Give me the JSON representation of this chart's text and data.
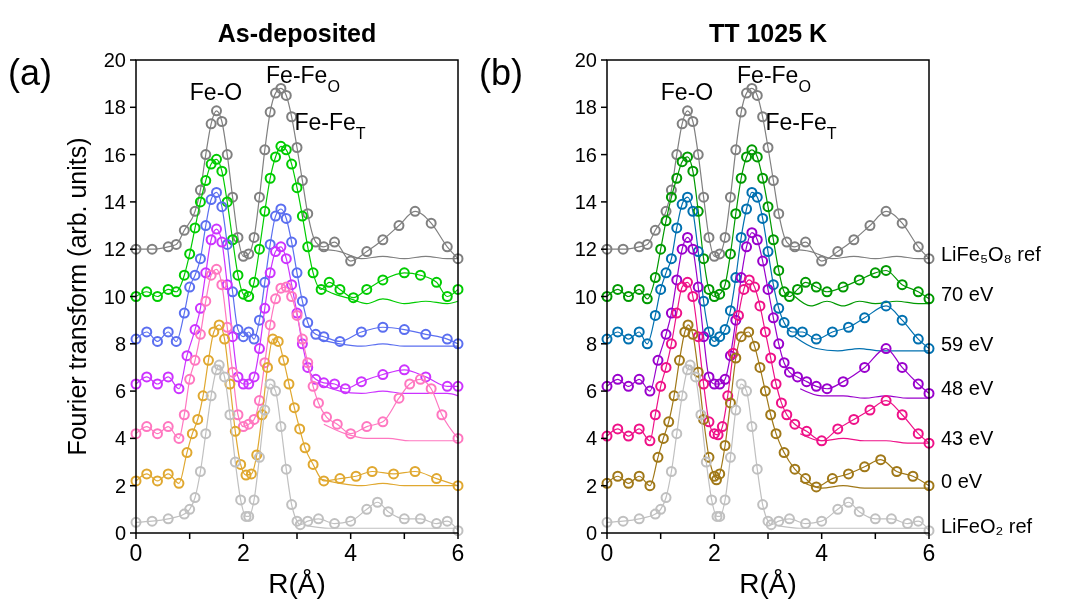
{
  "chart_data": [
    {
      "type": "line",
      "title": "As-deposited",
      "xlabel": "R(Å)",
      "ylabel": "Fourier transform (arb. units)",
      "xlim": [
        0,
        6
      ],
      "xticks": [
        0,
        {
          "value": 1,
          "label": null
        },
        2,
        {
          "value": 3,
          "label": null
        },
        4,
        {
          "value": 5,
          "label": null
        },
        6
      ],
      "ylim": [
        0,
        20
      ],
      "yticks": [
        0,
        2,
        4,
        6,
        8,
        10,
        12,
        14,
        16,
        18,
        20
      ],
      "grid": false,
      "annotations": [
        "(a)",
        "Fe-O",
        "Fe-Fe$_{O}$",
        "Fe-Fe$_{T}$"
      ],
      "series": [
        {
          "color": "#808080",
          "marker": "circle",
          "x": [
            0,
            0.3,
            0.6,
            0.75,
            0.9,
            1.1,
            1.2,
            1.3,
            1.4,
            1.5,
            1.6,
            1.7,
            1.8,
            1.9,
            2.0,
            2.1,
            2.2,
            2.3,
            2.4,
            2.5,
            2.6,
            2.7,
            2.8,
            2.9,
            3.0,
            3.1,
            3.2,
            3.35,
            3.5,
            3.7,
            4.0,
            4.3,
            4.6,
            4.9,
            5.2,
            5.5,
            5.8,
            6.0
          ],
          "values": [
            12.0,
            12.0,
            12.1,
            12.2,
            12.8,
            13.6,
            14.5,
            16.0,
            17.3,
            17.85,
            17.4,
            16.0,
            14.2,
            12.5,
            11.7,
            11.8,
            12.5,
            14.2,
            16.2,
            17.8,
            18.6,
            18.8,
            18.5,
            17.6,
            16.3,
            14.9,
            13.5,
            12.3,
            12.1,
            12.3,
            11.5,
            11.9,
            12.4,
            13.0,
            13.6,
            13.1,
            12.1,
            11.6
          ]
        },
        {
          "type": "line",
          "color": "#808080",
          "marker": "none",
          "x": [
            3.4,
            3.8,
            4.2,
            4.6,
            5.0,
            5.4,
            5.8,
            6.0
          ],
          "values": [
            12.0,
            11.9,
            11.6,
            11.7,
            11.6,
            11.7,
            11.6,
            11.6
          ]
        },
        {
          "color": "#00cc00",
          "marker": "circle",
          "x": [
            0,
            0.2,
            0.4,
            0.6,
            0.75,
            0.9,
            1.0,
            1.1,
            1.2,
            1.3,
            1.4,
            1.5,
            1.6,
            1.7,
            1.8,
            1.9,
            2.0,
            2.1,
            2.2,
            2.3,
            2.4,
            2.5,
            2.6,
            2.7,
            2.8,
            2.9,
            3.0,
            3.1,
            3.2,
            3.3,
            3.45,
            3.6,
            3.8,
            4.05,
            4.3,
            4.6,
            5.0,
            5.3,
            5.6,
            5.8,
            6.0
          ],
          "values": [
            10.0,
            10.2,
            10.0,
            10.3,
            10.2,
            10.9,
            11.8,
            12.9,
            14.0,
            14.9,
            15.6,
            15.8,
            15.3,
            14.0,
            12.4,
            10.9,
            10.1,
            10.0,
            10.6,
            12.0,
            13.6,
            15.0,
            15.9,
            16.35,
            16.2,
            15.6,
            14.6,
            13.4,
            12.1,
            11.0,
            10.3,
            10.6,
            10.3,
            9.95,
            10.3,
            10.7,
            11.0,
            10.9,
            10.6,
            10.0,
            10.3
          ]
        },
        {
          "type": "line",
          "color": "#00cc00",
          "marker": "none",
          "x": [
            3.4,
            3.7,
            4.0,
            4.3,
            4.6,
            5.0,
            5.4,
            5.8,
            6.0
          ],
          "values": [
            10.4,
            10.1,
            9.9,
            9.7,
            9.9,
            9.7,
            9.8,
            9.7,
            9.8
          ]
        },
        {
          "color": "#5b6ff0",
          "marker": "circle",
          "x": [
            0,
            0.2,
            0.4,
            0.6,
            0.75,
            0.9,
            1.0,
            1.1,
            1.2,
            1.3,
            1.4,
            1.5,
            1.6,
            1.7,
            1.8,
            1.9,
            2.0,
            2.1,
            2.2,
            2.3,
            2.4,
            2.5,
            2.6,
            2.7,
            2.8,
            2.9,
            3.0,
            3.1,
            3.2,
            3.35,
            3.5,
            3.8,
            4.2,
            4.6,
            5.0,
            5.4,
            5.8,
            6.0
          ],
          "values": [
            8.2,
            8.5,
            8.1,
            8.5,
            8.1,
            9.3,
            10.4,
            10.9,
            11.6,
            13.0,
            14.1,
            14.4,
            13.8,
            12.2,
            10.2,
            8.6,
            8.3,
            8.5,
            8.2,
            9.0,
            10.6,
            12.2,
            13.4,
            13.7,
            13.3,
            12.3,
            11.0,
            9.8,
            8.9,
            8.4,
            8.3,
            8.1,
            8.5,
            8.7,
            8.6,
            8.4,
            8.2,
            8.0
          ]
        },
        {
          "type": "line",
          "color": "#5b6ff0",
          "marker": "none",
          "x": [
            3.4,
            3.8,
            4.2,
            4.6,
            5.0,
            5.4,
            5.8,
            6.0
          ],
          "values": [
            8.2,
            8.0,
            7.9,
            8.0,
            7.9,
            7.9,
            7.9,
            7.9
          ]
        },
        {
          "color": "#cc33ff",
          "marker": "circle",
          "x": [
            0,
            0.2,
            0.4,
            0.6,
            0.8,
            0.95,
            1.1,
            1.2,
            1.3,
            1.4,
            1.5,
            1.6,
            1.7,
            1.8,
            1.9,
            2.0,
            2.1,
            2.2,
            2.3,
            2.4,
            2.5,
            2.6,
            2.7,
            2.8,
            2.9,
            3.0,
            3.1,
            3.2,
            3.35,
            3.5,
            3.7,
            3.9,
            4.2,
            4.6,
            5.0,
            5.4,
            5.8,
            6.0
          ],
          "values": [
            6.3,
            6.6,
            6.3,
            6.6,
            6.1,
            7.5,
            8.6,
            9.5,
            11.0,
            12.4,
            12.85,
            12.3,
            10.5,
            8.3,
            6.6,
            6.3,
            6.3,
            6.6,
            7.8,
            9.5,
            11.0,
            11.9,
            12.1,
            11.6,
            10.5,
            9.3,
            8.0,
            7.0,
            6.5,
            6.35,
            6.3,
            6.1,
            6.4,
            6.7,
            6.9,
            6.6,
            6.2,
            6.2
          ]
        },
        {
          "type": "line",
          "color": "#cc33ff",
          "marker": "none",
          "x": [
            3.4,
            3.8,
            4.2,
            4.6,
            5.0,
            5.4,
            5.8,
            6.0
          ],
          "values": [
            6.3,
            6.0,
            5.9,
            6.0,
            5.9,
            5.9,
            5.9,
            5.8
          ]
        },
        {
          "color": "#ff77c0",
          "marker": "circle",
          "x": [
            0,
            0.2,
            0.4,
            0.6,
            0.8,
            0.9,
            1.0,
            1.1,
            1.2,
            1.3,
            1.4,
            1.5,
            1.6,
            1.7,
            1.8,
            1.9,
            2.0,
            2.1,
            2.2,
            2.3,
            2.4,
            2.5,
            2.6,
            2.7,
            2.8,
            2.9,
            3.0,
            3.1,
            3.2,
            3.3,
            3.4,
            3.55,
            3.75,
            4.0,
            4.3,
            4.6,
            4.9,
            5.1,
            5.3,
            5.5,
            5.7,
            6.0
          ],
          "values": [
            4.2,
            4.5,
            4.2,
            4.5,
            4.0,
            5.0,
            6.5,
            7.3,
            8.4,
            9.8,
            10.9,
            11.15,
            10.5,
            8.7,
            6.8,
            5.0,
            4.5,
            4.6,
            4.8,
            5.6,
            7.2,
            8.8,
            9.9,
            10.35,
            10.4,
            10.0,
            9.2,
            8.2,
            7.2,
            6.2,
            5.5,
            4.9,
            4.6,
            4.2,
            4.5,
            4.7,
            5.7,
            6.3,
            6.5,
            6.1,
            5.0,
            4.0
          ]
        },
        {
          "type": "line",
          "color": "#ff77c0",
          "marker": "none",
          "x": [
            3.5,
            3.9,
            4.3,
            4.7,
            5.1,
            5.5,
            5.9,
            6.0
          ],
          "values": [
            4.6,
            4.2,
            4.0,
            4.0,
            3.9,
            3.9,
            3.9,
            3.9
          ]
        },
        {
          "color": "#e0a830",
          "marker": "circle",
          "x": [
            0,
            0.2,
            0.4,
            0.6,
            0.8,
            0.95,
            1.05,
            1.15,
            1.25,
            1.35,
            1.45,
            1.55,
            1.65,
            1.75,
            1.85,
            1.95,
            2.05,
            2.15,
            2.25,
            2.35,
            2.45,
            2.55,
            2.65,
            2.75,
            2.85,
            2.95,
            3.05,
            3.15,
            3.3,
            3.5,
            3.8,
            4.1,
            4.4,
            4.8,
            5.2,
            5.6,
            6.0
          ],
          "values": [
            2.2,
            2.5,
            2.2,
            2.5,
            2.1,
            3.4,
            4.2,
            4.8,
            5.8,
            7.3,
            8.5,
            8.8,
            8.2,
            6.3,
            4.3,
            2.9,
            2.45,
            2.5,
            3.3,
            5.0,
            7.0,
            8.2,
            8.1,
            7.3,
            6.3,
            5.3,
            4.4,
            3.6,
            2.9,
            2.2,
            2.3,
            2.4,
            2.6,
            2.5,
            2.6,
            2.3,
            2.0
          ]
        },
        {
          "type": "line",
          "color": "#e0a830",
          "marker": "none",
          "x": [
            3.4,
            3.8,
            4.2,
            4.6,
            5.0,
            5.4,
            5.8,
            6.0
          ],
          "values": [
            2.3,
            2.1,
            2.0,
            2.1,
            2.0,
            2.0,
            2.0,
            2.0
          ]
        },
        {
          "color": "#c0c0c0",
          "marker": "circle",
          "x": [
            0,
            0.3,
            0.6,
            0.9,
            1.0,
            1.1,
            1.2,
            1.3,
            1.4,
            1.5,
            1.55,
            1.65,
            1.75,
            1.85,
            1.95,
            2.05,
            2.1,
            2.2,
            2.3,
            2.4,
            2.5,
            2.6,
            2.7,
            2.8,
            2.9,
            3.0,
            3.06,
            3.2,
            3.4,
            3.7,
            4.0,
            4.3,
            4.5,
            4.7,
            5.0,
            5.3,
            5.6,
            5.8,
            6.0
          ],
          "values": [
            0.45,
            0.5,
            0.6,
            0.8,
            1.0,
            1.5,
            2.6,
            4.2,
            5.8,
            6.9,
            7.1,
            6.6,
            5.0,
            3.0,
            1.4,
            0.7,
            0.7,
            1.4,
            3.2,
            5.2,
            6.3,
            6.0,
            4.5,
            2.7,
            1.2,
            0.5,
            0.35,
            0.5,
            0.6,
            0.4,
            0.5,
            1.0,
            1.3,
            0.9,
            0.6,
            0.6,
            0.4,
            0.5,
            0.1
          ]
        },
        {
          "type": "line",
          "color": "#c0c0c0",
          "marker": "none",
          "x": [
            3.2,
            3.6,
            4.0,
            4.4,
            4.8,
            5.2,
            5.6,
            6.0
          ],
          "values": [
            0.3,
            0.2,
            0.2,
            0.2,
            0.2,
            0.2,
            0.2,
            0.2
          ]
        }
      ]
    },
    {
      "type": "line",
      "title": "TT 1025 K",
      "xlabel": "R(Å)",
      "xlim": [
        0,
        6
      ],
      "xticks": [
        0,
        {
          "value": 1,
          "label": null
        },
        2,
        {
          "value": 3,
          "label": null
        },
        4,
        {
          "value": 5,
          "label": null
        },
        6
      ],
      "ylim": [
        0,
        20
      ],
      "yticks": [
        0,
        2,
        4,
        6,
        8,
        10,
        12,
        14,
        16,
        18,
        20
      ],
      "grid": false,
      "annotations": [
        "(b)",
        "Fe-O",
        "Fe-Fe$_{O}$",
        "Fe-Fe$_{T}$"
      ],
      "series": [
        {
          "name": "LiFe₅O₈ ref",
          "color": "#808080",
          "marker": "circle",
          "x": [
            0,
            0.3,
            0.6,
            0.75,
            0.9,
            1.1,
            1.2,
            1.3,
            1.4,
            1.5,
            1.6,
            1.7,
            1.8,
            1.9,
            2.0,
            2.1,
            2.2,
            2.3,
            2.4,
            2.5,
            2.6,
            2.7,
            2.8,
            2.9,
            3.0,
            3.1,
            3.2,
            3.35,
            3.5,
            3.7,
            4.0,
            4.3,
            4.6,
            4.9,
            5.2,
            5.5,
            5.8,
            6.0
          ],
          "values": [
            12.0,
            12.0,
            12.1,
            12.2,
            12.8,
            13.6,
            14.5,
            16.0,
            17.3,
            17.85,
            17.4,
            16.0,
            14.2,
            12.5,
            11.7,
            11.8,
            12.5,
            14.2,
            16.2,
            17.8,
            18.6,
            18.8,
            18.5,
            17.6,
            16.3,
            14.9,
            13.5,
            12.3,
            12.1,
            12.3,
            11.5,
            11.9,
            12.4,
            13.0,
            13.6,
            13.1,
            12.1,
            11.6
          ]
        },
        {
          "type": "line",
          "color": "#808080",
          "marker": "none",
          "x": [
            3.4,
            3.8,
            4.2,
            4.6,
            5.0,
            5.4,
            5.8,
            6.0
          ],
          "values": [
            12.0,
            11.9,
            11.6,
            11.7,
            11.6,
            11.7,
            11.6,
            11.6
          ]
        },
        {
          "name": "70 eV",
          "color": "#009900",
          "marker": "circle",
          "x": [
            0,
            0.2,
            0.4,
            0.6,
            0.75,
            0.9,
            1.0,
            1.1,
            1.2,
            1.3,
            1.4,
            1.5,
            1.6,
            1.7,
            1.8,
            1.9,
            2.0,
            2.1,
            2.2,
            2.3,
            2.4,
            2.5,
            2.6,
            2.7,
            2.8,
            2.9,
            3.0,
            3.1,
            3.2,
            3.3,
            3.4,
            3.55,
            3.7,
            3.9,
            4.1,
            4.4,
            4.7,
            5.0,
            5.2,
            5.5,
            5.8,
            6.0
          ],
          "values": [
            10.0,
            10.3,
            10.0,
            10.3,
            9.9,
            10.8,
            12.0,
            13.2,
            14.2,
            15.0,
            15.7,
            15.9,
            15.3,
            13.6,
            11.6,
            10.3,
            10.0,
            10.1,
            10.5,
            11.8,
            13.5,
            15.0,
            15.9,
            16.2,
            15.9,
            15.0,
            13.8,
            12.4,
            11.1,
            10.2,
            10.0,
            10.3,
            10.6,
            10.4,
            10.2,
            10.4,
            10.7,
            11.0,
            11.1,
            10.5,
            10.2,
            9.9
          ]
        },
        {
          "type": "line",
          "color": "#009900",
          "marker": "none",
          "x": [
            3.5,
            3.8,
            4.1,
            4.4,
            4.7,
            5.0,
            5.4,
            5.8,
            6.0
          ],
          "values": [
            10.0,
            9.6,
            9.8,
            9.6,
            9.8,
            9.7,
            9.8,
            9.7,
            9.7
          ]
        },
        {
          "name": "59 eV",
          "color": "#0070b0",
          "marker": "circle",
          "x": [
            0,
            0.2,
            0.4,
            0.6,
            0.75,
            0.9,
            1.0,
            1.1,
            1.2,
            1.3,
            1.4,
            1.5,
            1.6,
            1.7,
            1.8,
            1.9,
            2.0,
            2.1,
            2.2,
            2.3,
            2.4,
            2.5,
            2.6,
            2.7,
            2.8,
            2.9,
            3.0,
            3.1,
            3.2,
            3.3,
            3.45,
            3.64,
            3.9,
            4.2,
            4.5,
            4.8,
            5.2,
            5.5,
            5.8,
            6.0
          ],
          "values": [
            8.2,
            8.5,
            8.2,
            8.5,
            8.0,
            9.2,
            10.3,
            11.0,
            11.6,
            12.9,
            13.9,
            14.2,
            13.6,
            11.9,
            9.8,
            8.5,
            8.1,
            8.3,
            8.6,
            9.4,
            10.8,
            12.5,
            13.7,
            14.4,
            14.2,
            13.3,
            11.9,
            10.5,
            9.5,
            8.9,
            8.5,
            8.5,
            8.2,
            8.5,
            8.7,
            9.1,
            9.6,
            9.0,
            8.2,
            7.8
          ]
        },
        {
          "type": "line",
          "color": "#0070b0",
          "marker": "none",
          "x": [
            3.5,
            3.9,
            4.3,
            4.7,
            5.1,
            5.5,
            5.9,
            6.0
          ],
          "values": [
            8.3,
            7.8,
            7.7,
            7.8,
            7.7,
            7.7,
            7.7,
            7.7
          ]
        },
        {
          "name": "48 eV",
          "color": "#9900cc",
          "marker": "circle",
          "x": [
            0,
            0.2,
            0.4,
            0.6,
            0.8,
            0.95,
            1.1,
            1.2,
            1.3,
            1.4,
            1.5,
            1.6,
            1.7,
            1.8,
            1.9,
            2.0,
            2.1,
            2.2,
            2.3,
            2.4,
            2.5,
            2.6,
            2.7,
            2.8,
            2.9,
            3.0,
            3.1,
            3.2,
            3.3,
            3.4,
            3.55,
            3.72,
            3.9,
            4.1,
            4.4,
            4.8,
            5.2,
            5.5,
            5.8,
            6.0
          ],
          "values": [
            6.2,
            6.5,
            6.2,
            6.5,
            6.0,
            7.3,
            8.4,
            9.3,
            10.7,
            12.0,
            12.5,
            12.0,
            10.4,
            8.3,
            6.6,
            6.3,
            6.3,
            6.5,
            7.5,
            9.0,
            10.8,
            12.1,
            12.7,
            12.4,
            11.5,
            10.3,
            9.1,
            8.0,
            7.2,
            6.8,
            6.6,
            6.4,
            6.2,
            6.1,
            6.4,
            7.0,
            7.8,
            7.0,
            6.3,
            5.9
          ]
        },
        {
          "type": "line",
          "color": "#9900cc",
          "marker": "none",
          "x": [
            3.6,
            4.0,
            4.4,
            4.8,
            5.2,
            5.6,
            6.0
          ],
          "values": [
            6.1,
            5.8,
            5.8,
            5.7,
            5.8,
            5.7,
            5.7
          ]
        },
        {
          "name": "43 eV",
          "color": "#ee1188",
          "marker": "circle",
          "x": [
            0,
            0.2,
            0.4,
            0.6,
            0.8,
            0.9,
            1.0,
            1.1,
            1.2,
            1.3,
            1.4,
            1.5,
            1.6,
            1.7,
            1.8,
            1.9,
            2.0,
            2.07,
            2.15,
            2.25,
            2.35,
            2.45,
            2.55,
            2.65,
            2.75,
            2.85,
            2.95,
            3.05,
            3.15,
            3.25,
            3.35,
            3.5,
            3.72,
            4.0,
            4.3,
            4.6,
            4.9,
            5.2,
            5.5,
            5.8,
            6.0
          ],
          "values": [
            4.1,
            4.4,
            4.1,
            4.4,
            3.9,
            5.0,
            6.2,
            7.0,
            8.0,
            9.3,
            10.4,
            10.6,
            10.0,
            8.3,
            6.3,
            4.7,
            4.2,
            4.15,
            4.5,
            5.8,
            7.6,
            9.2,
            10.3,
            10.7,
            10.4,
            9.6,
            8.5,
            7.4,
            6.3,
            5.5,
            5.0,
            4.6,
            4.3,
            3.9,
            4.4,
            4.8,
            5.2,
            5.6,
            5.0,
            4.2,
            3.8
          ]
        },
        {
          "type": "line",
          "color": "#ee1188",
          "marker": "none",
          "x": [
            3.6,
            4.0,
            4.4,
            4.8,
            5.2,
            5.6,
            6.0
          ],
          "values": [
            4.2,
            3.9,
            4.0,
            3.9,
            3.9,
            3.8,
            3.8
          ]
        },
        {
          "name": "0 eV",
          "color": "#a07818",
          "marker": "circle",
          "x": [
            0,
            0.2,
            0.4,
            0.6,
            0.8,
            0.95,
            1.05,
            1.15,
            1.25,
            1.35,
            1.45,
            1.51,
            1.6,
            1.7,
            1.8,
            1.9,
            2.0,
            2.04,
            2.1,
            2.2,
            2.3,
            2.4,
            2.5,
            2.64,
            2.75,
            2.85,
            2.95,
            3.05,
            3.15,
            3.3,
            3.5,
            3.7,
            3.9,
            4.2,
            4.5,
            4.8,
            5.1,
            5.4,
            5.7,
            6.0
          ],
          "values": [
            2.1,
            2.4,
            2.1,
            2.4,
            2.0,
            3.2,
            4.0,
            4.7,
            5.8,
            7.3,
            8.5,
            8.8,
            8.4,
            6.8,
            4.8,
            3.2,
            2.4,
            2.25,
            2.5,
            3.7,
            5.5,
            7.4,
            8.3,
            8.5,
            7.9,
            7.0,
            6.0,
            5.0,
            4.2,
            3.4,
            2.7,
            2.3,
            1.95,
            2.3,
            2.5,
            2.8,
            3.1,
            2.6,
            2.4,
            2.0
          ]
        },
        {
          "type": "line",
          "color": "#a07818",
          "marker": "none",
          "x": [
            3.6,
            4.0,
            4.4,
            4.8,
            5.2,
            5.6,
            6.0
          ],
          "values": [
            2.2,
            1.9,
            2.0,
            1.9,
            1.9,
            1.9,
            1.9
          ]
        },
        {
          "name": "LiFeO₂ ref",
          "color": "#c0c0c0",
          "marker": "circle",
          "x": [
            0,
            0.3,
            0.6,
            0.9,
            1.0,
            1.1,
            1.2,
            1.3,
            1.4,
            1.5,
            1.55,
            1.65,
            1.75,
            1.85,
            1.95,
            2.05,
            2.1,
            2.2,
            2.3,
            2.4,
            2.5,
            2.6,
            2.7,
            2.8,
            2.9,
            3.0,
            3.06,
            3.2,
            3.4,
            3.7,
            4.0,
            4.3,
            4.5,
            4.7,
            5.0,
            5.3,
            5.6,
            5.8,
            6.0
          ],
          "values": [
            0.45,
            0.5,
            0.6,
            0.8,
            1.0,
            1.5,
            2.6,
            4.2,
            5.8,
            6.9,
            7.1,
            6.6,
            5.0,
            3.0,
            1.4,
            0.7,
            0.7,
            1.4,
            3.2,
            5.2,
            6.3,
            6.0,
            4.5,
            2.7,
            1.2,
            0.5,
            0.35,
            0.5,
            0.6,
            0.4,
            0.5,
            1.0,
            1.3,
            0.9,
            0.6,
            0.6,
            0.4,
            0.5,
            0.1
          ]
        },
        {
          "type": "line",
          "color": "#c0c0c0",
          "marker": "none",
          "x": [
            3.2,
            3.6,
            4.0,
            4.4,
            4.8,
            5.2,
            5.6,
            6.0
          ],
          "values": [
            0.3,
            0.2,
            0.2,
            0.2,
            0.2,
            0.2,
            0.2,
            0.2
          ]
        }
      ]
    }
  ]
}
